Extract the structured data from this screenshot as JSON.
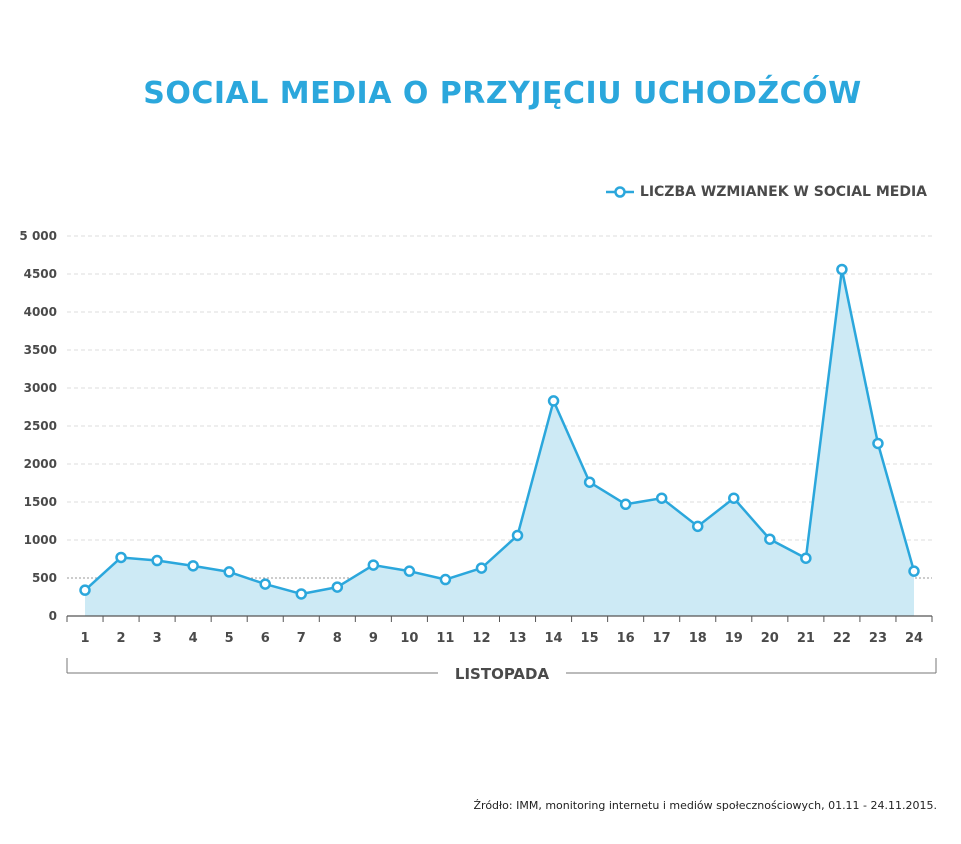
{
  "chart_data": {
    "type": "area",
    "title": "SOCIAL MEDIA O PRZYJĘCIU UCHODŹCÓW",
    "xlabel": "LISTOPADA",
    "ylabel": "",
    "categories": [
      "1",
      "2",
      "3",
      "4",
      "5",
      "6",
      "7",
      "8",
      "9",
      "10",
      "11",
      "12",
      "13",
      "14",
      "15",
      "16",
      "17",
      "18",
      "19",
      "20",
      "21",
      "22",
      "23",
      "24"
    ],
    "series": [
      {
        "name": "LICZBA WZMIANEK W SOCIAL MEDIA",
        "values": [
          340,
          770,
          730,
          660,
          580,
          420,
          290,
          380,
          670,
          590,
          480,
          630,
          1060,
          2830,
          1760,
          1470,
          1550,
          1180,
          1550,
          1010,
          760,
          4560,
          2270,
          590
        ],
        "color": "#2ba7dc",
        "fill": "#cdeaf5"
      }
    ],
    "ylim": [
      0,
      5000
    ],
    "yticks": [
      0,
      500,
      1000,
      1500,
      2000,
      2500,
      3000,
      3500,
      4000,
      4500,
      5000
    ],
    "ytick_labels": [
      "0",
      "500",
      "1000",
      "1500",
      "2000",
      "2500",
      "3000",
      "3500",
      "4000",
      "4500",
      "5 000"
    ],
    "grid": true,
    "legend_position": "top-right",
    "source": "Źródło: IMM, monitoring internetu i mediów społecznościowych, 01.11 - 24.11.2015."
  }
}
